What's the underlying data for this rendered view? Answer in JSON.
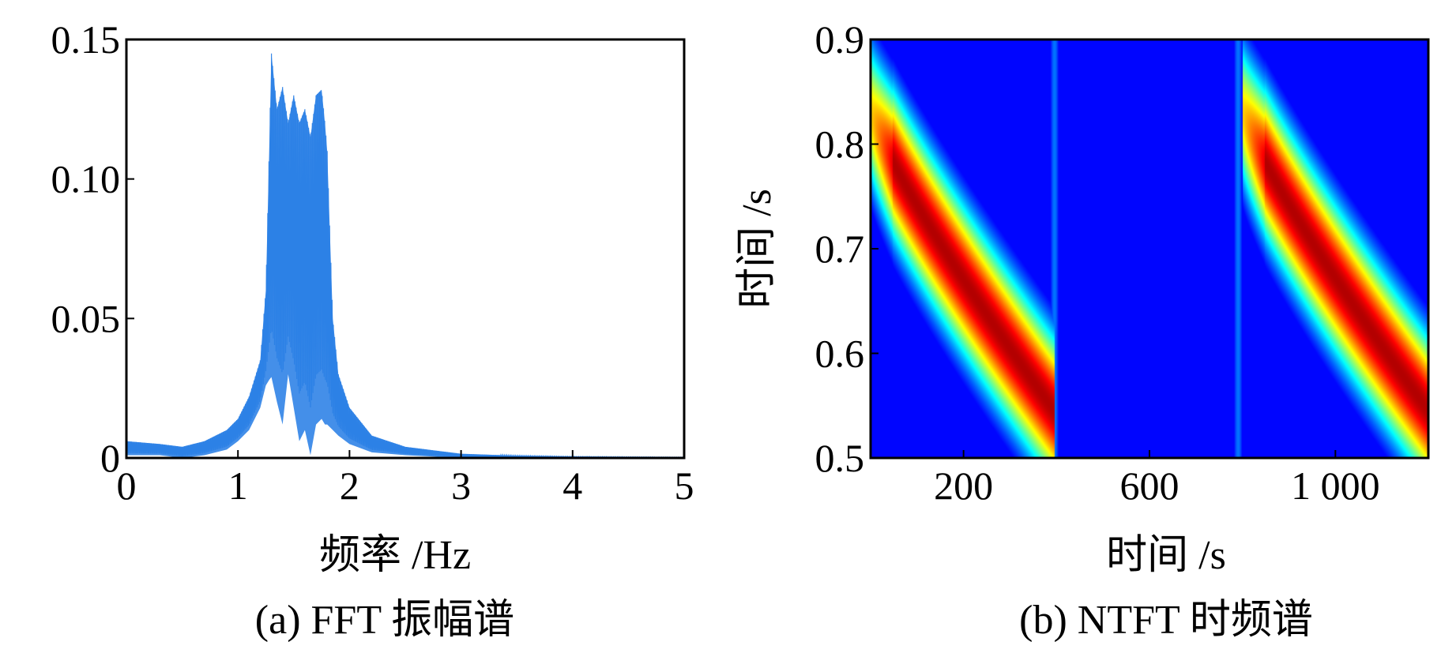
{
  "chart_data": [
    {
      "type": "line",
      "caption": "(a) FFT 振幅谱",
      "xlabel": "频率 /Hz",
      "ylabel": "",
      "xlim": [
        0,
        5
      ],
      "ylim": [
        0,
        0.15
      ],
      "x_ticks": [
        "0",
        "1",
        "2",
        "3",
        "4",
        "5"
      ],
      "y_ticks": [
        "0",
        "0.05",
        "0.10",
        "0.15"
      ],
      "grid": false,
      "color": "#2a7fe6",
      "envelope": {
        "x": [
          0,
          0.3,
          0.5,
          0.7,
          0.9,
          1.0,
          1.1,
          1.2,
          1.25,
          1.28,
          1.3,
          1.35,
          1.4,
          1.45,
          1.5,
          1.55,
          1.6,
          1.65,
          1.7,
          1.75,
          1.78,
          1.8,
          1.85,
          1.9,
          2.0,
          2.2,
          2.5,
          3.0,
          3.5,
          4.0,
          5.0
        ],
        "upper": [
          0.006,
          0.005,
          0.004,
          0.006,
          0.01,
          0.014,
          0.022,
          0.035,
          0.06,
          0.11,
          0.145,
          0.125,
          0.133,
          0.12,
          0.13,
          0.12,
          0.125,
          0.115,
          0.13,
          0.132,
          0.12,
          0.11,
          0.05,
          0.03,
          0.018,
          0.008,
          0.004,
          0.0015,
          0.0008,
          0.0005,
          0.0003
        ],
        "lower": [
          0.001,
          0.001,
          0.0,
          0.001,
          0.003,
          0.006,
          0.01,
          0.018,
          0.026,
          0.028,
          0.029,
          0.02,
          0.012,
          0.03,
          0.018,
          0.006,
          0.01,
          0.001,
          0.012,
          0.014,
          0.012,
          0.012,
          0.01,
          0.008,
          0.005,
          0.002,
          0.001,
          0.0,
          0.0,
          0.0,
          0.0
        ]
      }
    },
    {
      "type": "heatmap",
      "caption": "(b) NTFT 时频谱",
      "xlabel": "时间 /s",
      "ylabel": "时间 /s",
      "xlim": [
        0,
        1200
      ],
      "ylim": [
        0.5,
        0.9
      ],
      "x_ticks": [
        {
          "value": 200,
          "label": "200"
        },
        {
          "value": 600,
          "label": "600"
        },
        {
          "value": 1000,
          "label": "1 000"
        }
      ],
      "y_ticks": [
        "0.5",
        "0.6",
        "0.7",
        "0.8",
        "0.9"
      ],
      "colormap": "jet",
      "ridges": [
        {
          "t_start": 0,
          "t_end": 395,
          "f_start": 0.83,
          "f_end": 0.545
        },
        {
          "t_start": 800,
          "t_end": 1200,
          "f_start": 0.83,
          "f_end": 0.545
        }
      ],
      "vertical_bands": [
        395,
        790
      ]
    }
  ]
}
